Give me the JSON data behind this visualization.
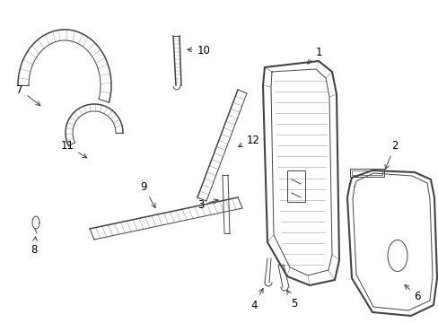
{
  "background_color": "#ffffff",
  "line_color": "#444444",
  "label_color": "#000000",
  "label_fontsize": 8.5,
  "fig_width": 4.89,
  "fig_height": 3.6,
  "dpi": 100
}
